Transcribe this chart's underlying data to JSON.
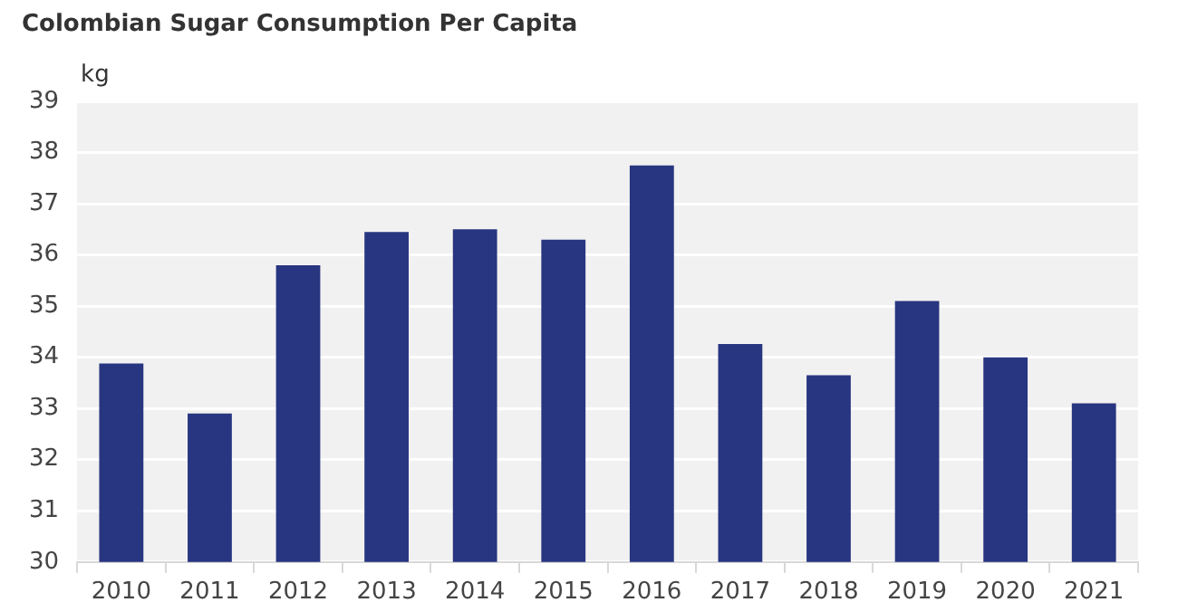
{
  "chart_data": {
    "type": "bar",
    "title": "Colombian Sugar Consumption Per Capita",
    "ylabel": "kg",
    "categories": [
      "2010",
      "2011",
      "2012",
      "2013",
      "2014",
      "2015",
      "2016",
      "2017",
      "2018",
      "2019",
      "2020",
      "2021"
    ],
    "values": [
      33.88,
      32.9,
      35.8,
      36.45,
      36.5,
      36.3,
      37.75,
      34.26,
      33.65,
      35.1,
      34.0,
      33.1
    ],
    "color": "#283580",
    "ylim": [
      30,
      39
    ],
    "yticks": [
      30,
      31,
      32,
      33,
      34,
      35,
      36,
      37,
      38,
      39
    ],
    "grid": "y"
  }
}
